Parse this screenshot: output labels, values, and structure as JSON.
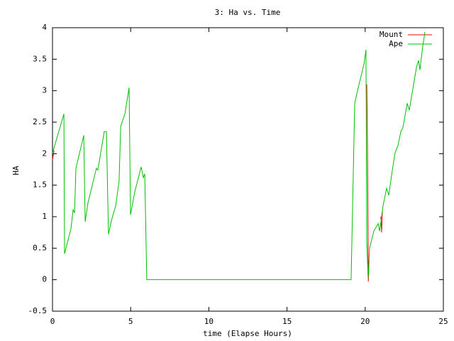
{
  "chart_data": {
    "type": "line",
    "title": "3: Ha vs. Time",
    "x_label": "time (Elapse Hours)",
    "y_label": "HA",
    "xlim": [
      0,
      25
    ],
    "xticks": [
      0,
      5,
      10,
      15,
      20,
      25
    ],
    "ylim": [
      -0.5,
      4
    ],
    "yticks": [
      -0.5,
      0,
      0.5,
      1,
      1.5,
      2,
      2.5,
      3,
      3.5,
      4
    ],
    "legend": "top-right",
    "series": [
      {
        "name": "Mount",
        "color": "#ff0000",
        "x": [
          0,
          0.1,
          null,
          20.1,
          20.12,
          20.15,
          20.18,
          20.2,
          20.25,
          null,
          21.0,
          21.05,
          21.1
        ],
        "values": [
          1.9,
          2.05,
          null,
          3.1,
          2.75,
          2.05,
          0.9,
          -0.03,
          0.3,
          null,
          1.0,
          0.75,
          1.1
        ]
      },
      {
        "name": "Ape",
        "color": "#00c000",
        "x": [
          0,
          0.73,
          0.77,
          1.18,
          1.32,
          1.41,
          1.5,
          2.0,
          2.09,
          2.27,
          2.81,
          2.9,
          3.31,
          3.45,
          3.58,
          3.77,
          4.04,
          4.26,
          4.36,
          4.63,
          4.9,
          4.99,
          5.26,
          5.67,
          5.81,
          5.9,
          6.03,
          19.1,
          19.33,
          19.51,
          19.92,
          20.05,
          20.1,
          20.19,
          20.28,
          20.55,
          20.83,
          20.92,
          21.14,
          21.37,
          21.51,
          21.73,
          21.91,
          22.1,
          22.28,
          22.41,
          22.69,
          22.82,
          23.05,
          23.28,
          23.41,
          23.5,
          23.68,
          23.82
        ],
        "values": [
          2.01,
          2.63,
          0.41,
          0.81,
          1.11,
          1.06,
          1.77,
          2.29,
          0.92,
          1.22,
          1.77,
          1.74,
          2.35,
          2.35,
          0.72,
          0.94,
          1.17,
          1.56,
          2.43,
          2.63,
          3.05,
          1.03,
          1.39,
          1.79,
          1.62,
          1.68,
          0,
          0,
          2.8,
          3.0,
          3.42,
          3.65,
          0.6,
          0.02,
          0.5,
          0.77,
          0.89,
          0.77,
          1.17,
          1.45,
          1.34,
          1.73,
          2.01,
          2.13,
          2.35,
          2.41,
          2.8,
          2.69,
          3.03,
          3.37,
          3.48,
          3.33,
          3.7,
          3.93
        ]
      }
    ]
  }
}
